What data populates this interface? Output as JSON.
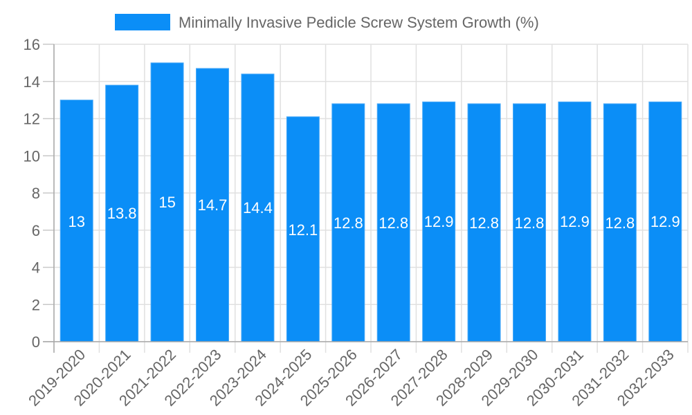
{
  "chart_data": {
    "type": "bar",
    "title": "",
    "legend": [
      {
        "label": "Minimally Invasive Pedicle Screw System Growth (%)",
        "color": "#0b8ef7"
      }
    ],
    "legend_position": "top",
    "xlabel": "",
    "ylabel": "",
    "ylim": [
      0,
      16
    ],
    "yticks": [
      0,
      2,
      4,
      6,
      8,
      10,
      12,
      14,
      16
    ],
    "grid": true,
    "categories": [
      "2019-2020",
      "2020-2021",
      "2021-2022",
      "2022-2023",
      "2023-2024",
      "2024-2025",
      "2025-2026",
      "2026-2027",
      "2027-2028",
      "2028-2029",
      "2029-2030",
      "2030-2031",
      "2031-2032",
      "2032-2033"
    ],
    "series": [
      {
        "name": "Minimally Invasive Pedicle Screw System Growth (%)",
        "values": [
          13,
          13.8,
          15,
          14.7,
          14.4,
          12.1,
          12.8,
          12.8,
          12.9,
          12.8,
          12.8,
          12.9,
          12.8,
          12.9
        ],
        "labels": [
          "13",
          "13.8",
          "15",
          "14.7",
          "14.4",
          "12.1",
          "12.8",
          "12.8",
          "12.9",
          "12.8",
          "12.8",
          "12.9",
          "12.8",
          "12.9"
        ],
        "color": "#0b8ef7"
      }
    ],
    "label_positions_y": [
      320,
      308,
      292,
      296,
      300,
      332,
      322,
      322,
      320,
      322,
      322,
      320,
      322,
      320
    ]
  }
}
